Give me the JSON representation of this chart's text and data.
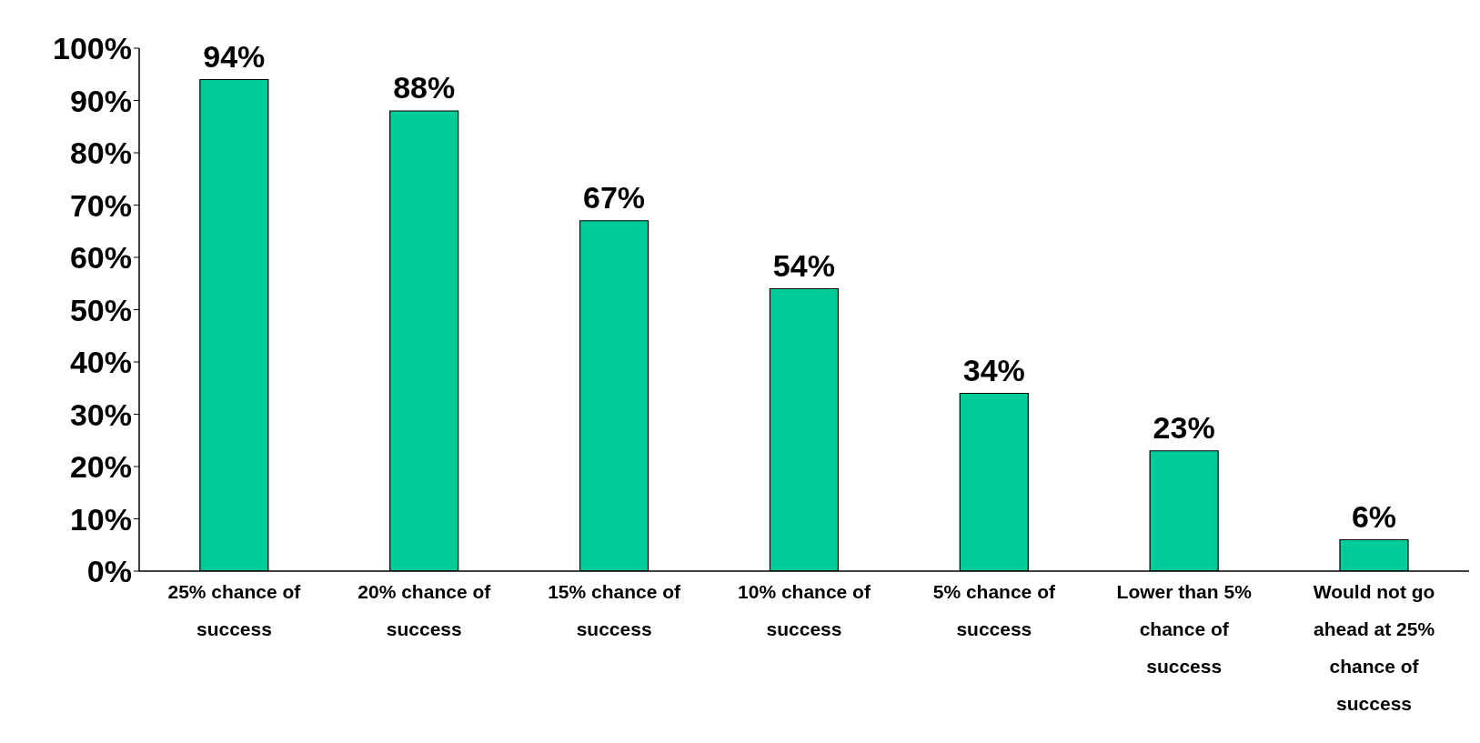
{
  "chart_data": {
    "type": "bar",
    "categories": [
      "25% chance of success",
      "20% chance of success",
      "15% chance of success",
      "10% chance of success",
      "5% chance of success",
      "Lower than 5% chance of success",
      "Would not go ahead at 25% chance of success"
    ],
    "values": [
      94,
      88,
      67,
      54,
      34,
      23,
      6
    ],
    "value_labels": [
      "94%",
      "88%",
      "67%",
      "54%",
      "34%",
      "23%",
      "6%"
    ],
    "color": "#00cc99",
    "ylim": [
      0,
      100
    ],
    "yticks": [
      {
        "value": 0,
        "label": "0%"
      },
      {
        "value": 10,
        "label": "10%"
      },
      {
        "value": 20,
        "label": "20%"
      },
      {
        "value": 30,
        "label": "30%"
      },
      {
        "value": 40,
        "label": "40%"
      },
      {
        "value": 50,
        "label": "50%"
      },
      {
        "value": 60,
        "label": "60%"
      },
      {
        "value": 70,
        "label": "70%"
      },
      {
        "value": 80,
        "label": "80%"
      },
      {
        "value": 90,
        "label": "90%"
      },
      {
        "value": 100,
        "label": "100%"
      }
    ],
    "grid": false,
    "legend": false
  }
}
